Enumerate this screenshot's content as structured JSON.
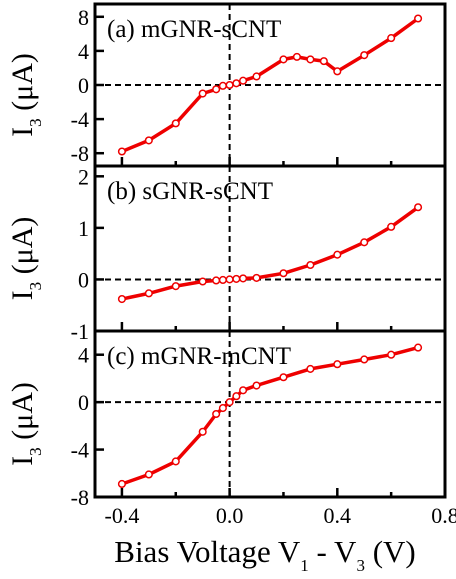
{
  "chart_data": [
    {
      "type": "line",
      "title": "(a) mGNR-sCNT",
      "ylabel": "I",
      "ylabel_sub": "3",
      "ylabel_unit": " (μA)",
      "xlim": [
        -0.5,
        0.8
      ],
      "ylim": [
        -9.5,
        9.5
      ],
      "yticks": [
        -8,
        -4,
        0,
        4,
        8
      ],
      "ytick_labels": [
        "-8",
        "-4",
        "0",
        "4",
        "8"
      ],
      "color": "#ee0000",
      "series": [
        {
          "x": [
            -0.4,
            -0.3,
            -0.2,
            -0.1,
            -0.05,
            -0.025,
            0.0,
            0.025,
            0.05,
            0.1,
            0.2,
            0.25,
            0.3,
            0.35,
            0.4,
            0.5,
            0.6,
            0.7
          ],
          "y": [
            -7.8,
            -6.5,
            -4.5,
            -1.0,
            -0.5,
            -0.1,
            0.0,
            0.2,
            0.5,
            1.0,
            3.0,
            3.3,
            3.0,
            2.8,
            1.6,
            3.5,
            5.5,
            7.8
          ]
        }
      ]
    },
    {
      "type": "line",
      "title": "(b) sGNR-sCNT",
      "ylabel": "I",
      "ylabel_sub": "3",
      "ylabel_unit": " (μA)",
      "xlim": [
        -0.5,
        0.8
      ],
      "ylim": [
        -1.0,
        2.2
      ],
      "yticks": [
        -1,
        0,
        1,
        2
      ],
      "ytick_labels": [
        "-1",
        "0",
        "1",
        "2"
      ],
      "color": "#ee0000",
      "series": [
        {
          "x": [
            -0.4,
            -0.3,
            -0.2,
            -0.1,
            -0.05,
            -0.025,
            0.0,
            0.025,
            0.05,
            0.1,
            0.2,
            0.3,
            0.4,
            0.5,
            0.6,
            0.7
          ],
          "y": [
            -0.38,
            -0.27,
            -0.13,
            -0.04,
            -0.02,
            -0.01,
            0.0,
            0.01,
            0.02,
            0.03,
            0.12,
            0.28,
            0.48,
            0.72,
            1.02,
            1.4
          ]
        }
      ]
    },
    {
      "type": "line",
      "title": "(c) mGNR-mCNT",
      "ylabel": "I",
      "ylabel_sub": "3",
      "ylabel_unit": " (μA)",
      "xlim": [
        -0.5,
        0.8
      ],
      "ylim": [
        -8.0,
        6.0
      ],
      "yticks": [
        -8,
        -4,
        0,
        4
      ],
      "ytick_labels": [
        "-8",
        "-4",
        "0",
        "4"
      ],
      "xticks": [
        -0.4,
        0.0,
        0.4,
        0.8
      ],
      "xtick_labels": [
        "-0.4",
        "0.0",
        "0.4",
        "0.8"
      ],
      "color": "#ee0000",
      "series": [
        {
          "x": [
            -0.4,
            -0.3,
            -0.2,
            -0.1,
            -0.05,
            -0.025,
            0.0,
            0.025,
            0.05,
            0.1,
            0.2,
            0.3,
            0.4,
            0.5,
            0.6,
            0.7
          ],
          "y": [
            -6.9,
            -6.1,
            -5.0,
            -2.5,
            -1.0,
            -0.5,
            0.0,
            0.5,
            1.0,
            1.4,
            2.1,
            2.8,
            3.2,
            3.6,
            4.0,
            4.6
          ]
        }
      ]
    }
  ],
  "xlabel": {
    "main": "Bias Voltage V",
    "sub1": "1",
    "mid": " - V",
    "sub2": "3",
    "end": " (V)"
  }
}
